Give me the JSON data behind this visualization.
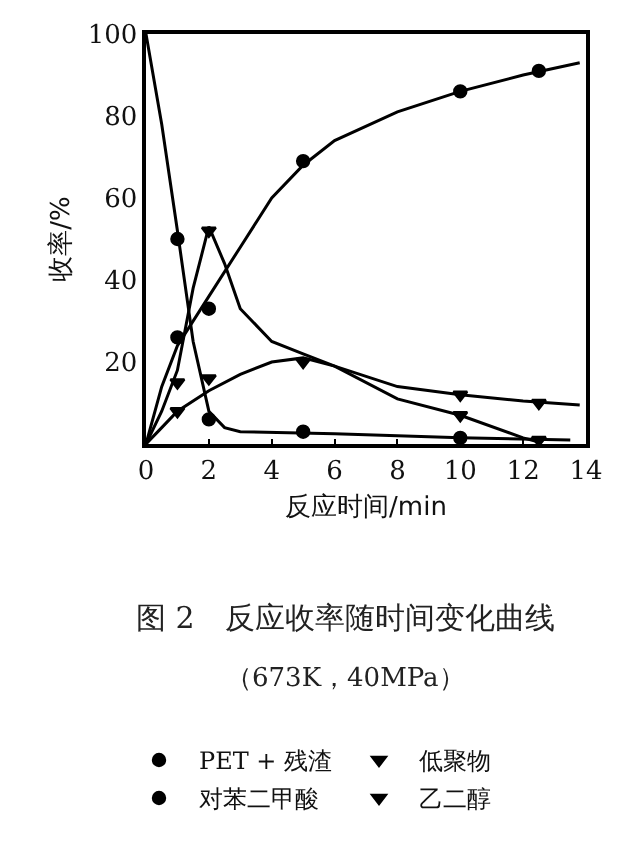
{
  "chart_data": {
    "type": "line",
    "title": "图 2　反应收率随时间变化曲线",
    "subtitle": "（673K，40MPa）",
    "xlabel": "反应时间/min",
    "ylabel": "收率/%",
    "xlim": [
      0,
      14
    ],
    "xticks": [
      0,
      2,
      4,
      6,
      8,
      10,
      12,
      14
    ],
    "ylim": [
      0,
      100
    ],
    "yticks": [
      20,
      40,
      60,
      80,
      100
    ],
    "grid": false,
    "legend": "bottom",
    "line_style": "solid",
    "series": [
      {
        "color": "#000000",
        "marker": "none",
        "x": [
          0,
          0.5,
          1,
          1.5,
          2,
          2.5,
          3,
          6,
          10,
          13.5
        ],
        "values": [
          100,
          78,
          52,
          25,
          8,
          4,
          3,
          2.5,
          1.5,
          1
        ]
      },
      {
        "color": "#000000",
        "marker": "none",
        "x": [
          0,
          0.5,
          1,
          1.5,
          2,
          2.5,
          3,
          4,
          5,
          6,
          8,
          10,
          12,
          12.5
        ],
        "values": [
          0,
          8,
          18,
          38,
          53,
          44,
          33,
          25,
          22,
          19,
          11,
          7,
          1.5,
          0.5
        ]
      },
      {
        "color": "#000000",
        "marker": "none",
        "x": [
          0,
          0.5,
          1,
          2,
          3,
          4,
          5,
          6,
          8,
          10,
          12,
          13.8
        ],
        "values": [
          0,
          14,
          24,
          36,
          48,
          60,
          68,
          74,
          81,
          86,
          90,
          93
        ]
      },
      {
        "color": "#000000",
        "marker": "none",
        "x": [
          0,
          0.5,
          1,
          2,
          3,
          4,
          5,
          6,
          8,
          10,
          12,
          13.8
        ],
        "values": [
          0,
          4,
          8,
          13,
          17,
          20,
          21,
          19,
          14,
          12,
          10.5,
          9.5
        ]
      },
      {
        "name": "PET + 残渣",
        "type": "scatter",
        "color": "#000000",
        "marker": "circle",
        "x": [
          1,
          2,
          5,
          10
        ],
        "values": [
          50,
          6,
          3,
          1.5
        ]
      },
      {
        "name": "低聚物",
        "type": "scatter",
        "color": "#000000",
        "marker": "triangle",
        "x": [
          1,
          2,
          10,
          12.5
        ],
        "values": [
          15,
          52,
          7,
          1
        ]
      },
      {
        "name": "对苯二甲酸",
        "type": "scatter",
        "color": "#000000",
        "marker": "circle",
        "x": [
          1,
          2,
          5,
          10,
          12.5
        ],
        "values": [
          26,
          33,
          69,
          86,
          91
        ]
      },
      {
        "name": "乙二醇",
        "type": "scatter",
        "color": "#000000",
        "marker": "triangle",
        "x": [
          1,
          2,
          5,
          10,
          12.5
        ],
        "values": [
          8,
          16,
          20,
          12,
          10
        ]
      }
    ]
  }
}
